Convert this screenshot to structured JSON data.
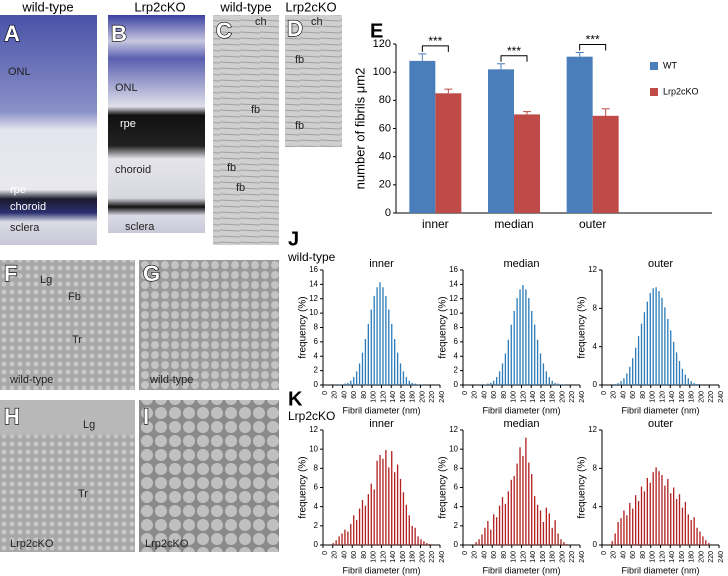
{
  "images": {
    "headers": [
      "wild-type",
      "Lrp2cKO",
      "wild-type",
      "Lrp2cKO"
    ],
    "A": {
      "letter": "A",
      "labels": [
        "ONL",
        "rpe",
        "choroid",
        "sclera"
      ]
    },
    "B": {
      "letter": "B",
      "labels": [
        "ONL",
        "rpe",
        "choroid",
        "sclera"
      ]
    },
    "C": {
      "letter": "C",
      "labels": [
        "ch",
        "fb",
        "fb",
        "fb"
      ]
    },
    "D": {
      "letter": "D",
      "labels": [
        "ch",
        "fb",
        "fb"
      ]
    },
    "F": {
      "letter": "F",
      "labels": [
        "Lg",
        "Fb",
        "Tr",
        "wild-type"
      ]
    },
    "G": {
      "letter": "G",
      "labels": [
        "wild-type"
      ]
    },
    "H": {
      "letter": "H",
      "labels": [
        "Lg",
        "Tr",
        "Lrp2cKO"
      ]
    },
    "I": {
      "letter": "I",
      "labels": [
        "Lrp2cKO"
      ]
    }
  },
  "histogram_groups": [
    {
      "letter": "J",
      "genotype": "wild-type"
    },
    {
      "letter": "K",
      "genotype": "Lrp2cKO"
    }
  ],
  "chart_data": [
    {
      "type": "bar",
      "panel": "E",
      "ylabel": "number of fibrils μm2",
      "categories": [
        "inner",
        "median",
        "outer"
      ],
      "series": [
        {
          "name": "WT",
          "color": "#4a7ebb",
          "values": [
            108,
            102,
            111
          ],
          "errors": [
            5,
            4,
            3
          ]
        },
        {
          "name": "Lrp2cKO",
          "color": "#be4b48",
          "values": [
            85,
            70,
            69
          ],
          "errors": [
            3,
            2,
            5
          ]
        }
      ],
      "significance": [
        "***",
        "***",
        "***"
      ],
      "ylim": [
        0,
        120
      ],
      "yticks": [
        0,
        20,
        40,
        60,
        80,
        100,
        120
      ],
      "legend": "right"
    },
    {
      "type": "histogram",
      "title": "inner",
      "xlabel": "Fibril diameter (nm)",
      "ylabel": "frequency (%)",
      "color": "#2e7dba",
      "bins": [
        18,
        24,
        30,
        36,
        42,
        48,
        54,
        60,
        66,
        72,
        78,
        84,
        90,
        96,
        102,
        108,
        114,
        120,
        126,
        132,
        138,
        144,
        150,
        156,
        162,
        168,
        174,
        180,
        186,
        192,
        198,
        204,
        210,
        216,
        222
      ],
      "values": [
        0,
        0,
        0.1,
        0.1,
        0.2,
        0.3,
        0.6,
        1.1,
        1.9,
        3.0,
        4.5,
        6.4,
        8.5,
        10.5,
        12.4,
        13.6,
        14.3,
        13.6,
        12.4,
        10.5,
        8.5,
        6.4,
        4.5,
        3.0,
        1.9,
        1.1,
        0.6,
        0.3,
        0.2,
        0.1,
        0.1,
        0,
        0,
        0
      ],
      "xlim": [
        0,
        240
      ],
      "xticks": [
        0,
        20,
        40,
        60,
        80,
        100,
        120,
        140,
        160,
        180,
        200,
        220,
        240
      ],
      "ylim": [
        0,
        16
      ],
      "yticks": [
        0,
        2,
        4,
        6,
        8,
        10,
        12,
        14,
        16
      ]
    },
    {
      "type": "histogram",
      "title": "median",
      "xlabel": "Fibril diameter (nm)",
      "ylabel": "frequency (%)",
      "color": "#2e7dba",
      "bins": [
        18,
        24,
        30,
        36,
        42,
        48,
        54,
        60,
        66,
        72,
        78,
        84,
        90,
        96,
        102,
        108,
        114,
        120,
        126,
        132,
        138,
        144,
        150,
        156,
        162,
        168,
        174,
        180,
        186,
        192,
        198,
        204,
        210,
        216,
        222
      ],
      "values": [
        0,
        0,
        0,
        0.1,
        0.1,
        0.2,
        0.3,
        0.6,
        1.1,
        1.9,
        3.0,
        4.4,
        6.3,
        8.4,
        10.3,
        12.1,
        13.3,
        13.9,
        13.3,
        12.1,
        10.3,
        8.4,
        6.3,
        4.4,
        3.0,
        1.9,
        1.1,
        0.6,
        0.3,
        0.2,
        0.1,
        0.1,
        0,
        0
      ],
      "xlim": [
        0,
        240
      ],
      "xticks": [
        0,
        20,
        40,
        60,
        80,
        100,
        120,
        140,
        160,
        180,
        200,
        220,
        240
      ],
      "ylim": [
        0,
        16
      ],
      "yticks": [
        0,
        2,
        4,
        6,
        8,
        10,
        12,
        14,
        16
      ]
    },
    {
      "type": "histogram",
      "title": "outer",
      "xlabel": "Fibril diameter (nm)",
      "ylabel": "frequency (%)",
      "color": "#2e7dba",
      "bins": [
        18,
        24,
        30,
        36,
        42,
        48,
        54,
        60,
        66,
        72,
        78,
        84,
        90,
        96,
        102,
        108,
        114,
        120,
        126,
        132,
        138,
        144,
        150,
        156,
        162,
        168,
        174,
        180,
        186,
        192,
        198,
        204,
        210,
        216,
        222
      ],
      "values": [
        0,
        0.1,
        0.2,
        0.4,
        0.7,
        1.2,
        1.9,
        2.8,
        3.9,
        5.1,
        6.4,
        7.6,
        8.7,
        9.6,
        10.1,
        10.2,
        9.8,
        9.1,
        8.1,
        6.9,
        5.7,
        4.5,
        3.4,
        2.5,
        1.7,
        1.1,
        0.7,
        0.4,
        0.2,
        0.1,
        0.1,
        0,
        0,
        0
      ],
      "xlim": [
        0,
        240
      ],
      "xticks": [
        0,
        20,
        40,
        60,
        80,
        100,
        120,
        140,
        160,
        180,
        200,
        220,
        240
      ],
      "ylim": [
        0,
        12
      ],
      "yticks": [
        0,
        4,
        8,
        12
      ]
    },
    {
      "type": "histogram",
      "title": "inner",
      "xlabel": "Fibril diameter (nm)",
      "ylabel": "frequency (%)",
      "color": "#b22222",
      "bins": [
        18,
        24,
        30,
        36,
        42,
        48,
        54,
        60,
        66,
        72,
        78,
        84,
        90,
        96,
        102,
        108,
        114,
        120,
        126,
        132,
        138,
        144,
        150,
        156,
        162,
        168,
        174,
        180,
        186,
        192,
        198,
        204,
        210,
        216,
        222
      ],
      "values": [
        0.2,
        0.5,
        0.9,
        1.2,
        1.6,
        1.4,
        2.2,
        3.1,
        2.6,
        3.8,
        4.7,
        4.1,
        5.3,
        6.4,
        5.8,
        8.8,
        9.4,
        9.0,
        9.9,
        8.1,
        9.8,
        7.6,
        8.4,
        6.9,
        5.5,
        4.2,
        3.1,
        2.0,
        1.8,
        0.9,
        0.6,
        0.4,
        0.2,
        0.1
      ],
      "xlim": [
        0,
        240
      ],
      "xticks": [
        0,
        20,
        40,
        60,
        80,
        100,
        120,
        140,
        160,
        180,
        200,
        220,
        240
      ],
      "ylim": [
        0,
        12
      ],
      "yticks": [
        0,
        2,
        4,
        6,
        8,
        10,
        12
      ]
    },
    {
      "type": "histogram",
      "title": "median",
      "xlabel": "Fibril diameter (nm)",
      "ylabel": "frequency (%)",
      "color": "#b22222",
      "bins": [
        18,
        24,
        30,
        36,
        42,
        48,
        54,
        60,
        66,
        72,
        78,
        84,
        90,
        96,
        102,
        108,
        114,
        120,
        126,
        132,
        138,
        144,
        150,
        156,
        162,
        168,
        174,
        180,
        186,
        192,
        198,
        204,
        210,
        216,
        222
      ],
      "values": [
        0,
        0.3,
        0.6,
        1.1,
        1.8,
        2.5,
        1.6,
        3.2,
        2.9,
        4.1,
        5.0,
        4.3,
        5.6,
        6.8,
        7.2,
        8.5,
        10.2,
        9.3,
        11.2,
        8.6,
        7.4,
        5.1,
        4.2,
        3.6,
        2.4,
        3.9,
        3.3,
        1.8,
        2.6,
        1.2,
        0.6,
        0.3,
        0.1,
        0
      ],
      "xlim": [
        0,
        240
      ],
      "xticks": [
        0,
        20,
        40,
        60,
        80,
        100,
        120,
        140,
        160,
        180,
        200,
        220,
        240
      ],
      "ylim": [
        0,
        12
      ],
      "yticks": [
        0,
        2,
        4,
        6,
        8,
        10,
        12
      ]
    },
    {
      "type": "histogram",
      "title": "outer",
      "xlabel": "Fibril diameter (nm)",
      "ylabel": "frequency (%)",
      "color": "#b22222",
      "bins": [
        18,
        24,
        30,
        36,
        42,
        48,
        54,
        60,
        66,
        72,
        78,
        84,
        90,
        96,
        102,
        108,
        114,
        120,
        126,
        132,
        138,
        144,
        150,
        156,
        162,
        168,
        174,
        180,
        186,
        192,
        198,
        204,
        210,
        216,
        222
      ],
      "values": [
        0.4,
        1.2,
        2.4,
        2.8,
        3.6,
        3.1,
        4.4,
        3.8,
        5.2,
        4.6,
        6.1,
        5.6,
        7.0,
        6.5,
        7.6,
        8.1,
        7.7,
        7.3,
        6.2,
        6.9,
        5.4,
        6.0,
        4.8,
        5.3,
        3.9,
        4.5,
        3.2,
        2.6,
        2.9,
        1.8,
        1.4,
        0.9,
        0.5,
        0.2
      ],
      "xlim": [
        0,
        240
      ],
      "xticks": [
        0,
        20,
        40,
        60,
        80,
        100,
        120,
        140,
        160,
        180,
        200,
        220,
        240
      ],
      "ylim": [
        0,
        12
      ],
      "yticks": [
        0,
        4,
        8,
        12
      ]
    }
  ]
}
